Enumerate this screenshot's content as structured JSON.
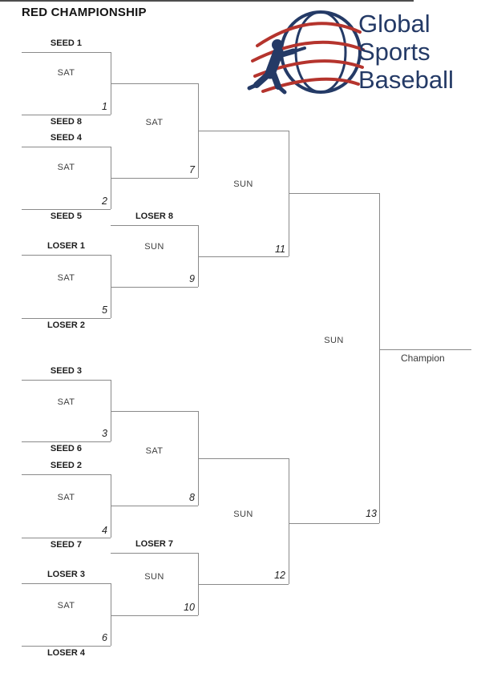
{
  "title": "RED CHAMPIONSHIP",
  "logo": {
    "words": [
      "Global",
      "Sports",
      "Baseball"
    ],
    "navy": "#243a66",
    "red": "#b5342d"
  },
  "champion_label": "Champion",
  "games": {
    "g1": {
      "num": "1",
      "day": "SAT",
      "top_entry": "SEED 1",
      "bottom_entry": "SEED 8"
    },
    "g2": {
      "num": "2",
      "day": "SAT",
      "top_entry": "SEED 4",
      "bottom_entry": "SEED 5"
    },
    "g3": {
      "num": "3",
      "day": "SAT",
      "top_entry": "SEED 3",
      "bottom_entry": "SEED 6"
    },
    "g4": {
      "num": "4",
      "day": "SAT",
      "top_entry": "SEED 2",
      "bottom_entry": "SEED 7"
    },
    "g5": {
      "num": "5",
      "day": "SAT",
      "top_entry": "LOSER 1",
      "bottom_entry": "LOSER 2"
    },
    "g6": {
      "num": "6",
      "day": "SAT",
      "top_entry": "LOSER 3",
      "bottom_entry": "LOSER 4"
    },
    "g7": {
      "num": "7",
      "day": "SAT"
    },
    "g8": {
      "num": "8",
      "day": "SAT"
    },
    "g9": {
      "num": "9",
      "day": "SUN",
      "entry": "LOSER 8"
    },
    "g10": {
      "num": "10",
      "day": "SUN",
      "entry": "LOSER 7"
    },
    "g11": {
      "num": "11",
      "day": "SUN"
    },
    "g12": {
      "num": "12",
      "day": "SUN"
    },
    "g13": {
      "num": "13",
      "day": "SUN"
    }
  }
}
